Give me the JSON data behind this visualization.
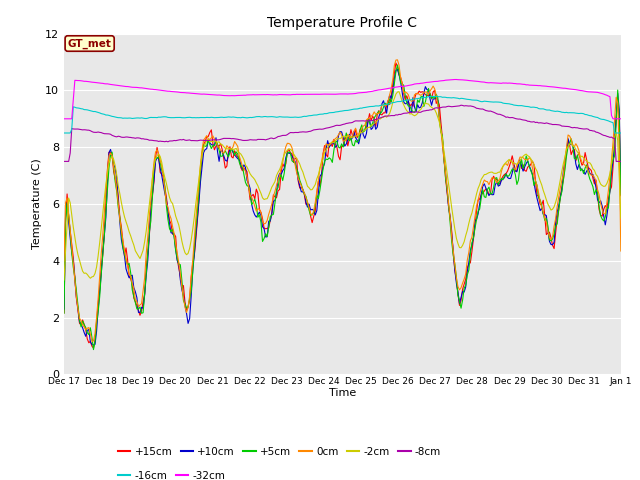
{
  "title": "Temperature Profile C",
  "xlabel": "Time",
  "ylabel": "Temperature (C)",
  "ylim": [
    0,
    12
  ],
  "yticks": [
    0,
    2,
    4,
    6,
    8,
    10,
    12
  ],
  "fig_bg_color": "#ffffff",
  "plot_bg_color": "#e8e8e8",
  "annotation_text": "GT_met",
  "annotation_bg": "#ffffcc",
  "annotation_border": "#8b0000",
  "annotation_text_color": "#8b0000",
  "series": [
    {
      "label": "+15cm",
      "color": "#ff0000"
    },
    {
      "label": "+10cm",
      "color": "#0000cc"
    },
    {
      "label": "+5cm",
      "color": "#00cc00"
    },
    {
      "label": "0cm",
      "color": "#ff8800"
    },
    {
      "label": "-2cm",
      "color": "#cccc00"
    },
    {
      "label": "-8cm",
      "color": "#aa00aa"
    },
    {
      "label": "-16cm",
      "color": "#00cccc"
    },
    {
      "label": "-32cm",
      "color": "#ff00ff"
    }
  ],
  "n_points": 360,
  "x_start": 17,
  "x_end": 32,
  "xtick_positions": [
    17,
    18,
    19,
    20,
    21,
    22,
    23,
    24,
    25,
    26,
    27,
    28,
    29,
    30,
    31,
    32
  ],
  "xtick_labels": [
    "Dec 17",
    "Dec 18",
    "Dec 19",
    "Dec 20",
    "Dec 21",
    "Dec 22",
    "Dec 23",
    "Dec 24",
    "Dec 25",
    "Dec 26",
    "Dec 27",
    "Dec 28",
    "Dec 29",
    "Dec 30",
    "Dec 31",
    "Jan 1"
  ]
}
